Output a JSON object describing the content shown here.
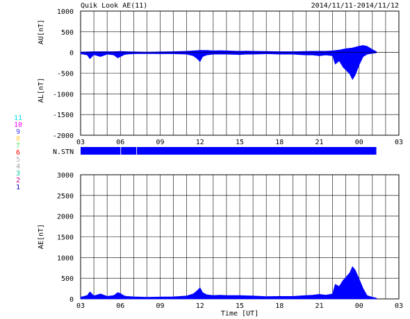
{
  "header": {
    "title": "Quik Look AE(11)",
    "date_range": "2014/11/11-2014/11/12"
  },
  "colors": {
    "series": "#0000ff",
    "grid": "#000000",
    "zero_line": "#000000"
  },
  "station_legend": [
    {
      "number": "11",
      "color": "#00e0e0"
    },
    {
      "number": "10",
      "color": "#ff00ff"
    },
    {
      "number": "9",
      "color": "#4040ff"
    },
    {
      "number": "8",
      "color": "#ffd040"
    },
    {
      "number": "7",
      "color": "#60e060"
    },
    {
      "number": "6",
      "color": "#ff0000"
    },
    {
      "number": "5",
      "color": "#b0b0b0"
    },
    {
      "number": "4",
      "color": "#a0a0a0"
    },
    {
      "number": "3",
      "color": "#00c0a0"
    },
    {
      "number": "2",
      "color": "#d00090"
    },
    {
      "number": "1",
      "color": "#0000c0"
    }
  ],
  "n_stn": {
    "label": "N.STN",
    "segments_hours": [
      [
        3,
        6.0
      ],
      [
        6.05,
        7.2
      ],
      [
        7.25,
        25.3
      ]
    ]
  },
  "chart_data": [
    {
      "type": "area",
      "name": "AU/AL",
      "ylabel_upper": "AU[nT]",
      "ylabel_lower": "AL[nT]",
      "ylim": [
        -2000,
        1000
      ],
      "yticks": [
        1000,
        500,
        0,
        -500,
        -1000,
        -1500,
        -2000
      ],
      "xlim_hours": [
        3,
        27
      ],
      "xtick_labels": [
        "03",
        "06",
        "09",
        "12",
        "15",
        "18",
        "21",
        "00",
        "03"
      ],
      "grid": true,
      "au": {
        "x_hours": [
          3.0,
          3.5,
          4.0,
          4.5,
          5.0,
          5.5,
          6.0,
          6.5,
          7.0,
          8.0,
          9.0,
          10.0,
          11.0,
          11.5,
          12.0,
          12.5,
          13.0,
          13.5,
          14.0,
          15.0,
          15.5,
          16.0,
          17.0,
          18.0,
          19.0,
          20.0,
          20.5,
          21.0,
          21.5,
          22.0,
          22.5,
          23.0,
          23.5,
          24.0,
          24.3,
          24.6,
          25.0,
          25.3
        ],
        "values": [
          10,
          15,
          20,
          20,
          20,
          20,
          25,
          20,
          15,
          10,
          15,
          20,
          30,
          40,
          50,
          50,
          40,
          45,
          40,
          30,
          35,
          30,
          25,
          20,
          20,
          25,
          30,
          30,
          30,
          40,
          60,
          90,
          110,
          150,
          170,
          150,
          70,
          20
        ]
      },
      "al": {
        "x_hours": [
          3.0,
          3.5,
          3.7,
          4.0,
          4.5,
          5.0,
          5.5,
          5.8,
          6.0,
          6.3,
          6.5,
          7.0,
          8.0,
          9.0,
          10.0,
          11.0,
          11.5,
          11.8,
          12.0,
          12.2,
          12.5,
          13.0,
          13.5,
          14.0,
          15.0,
          15.5,
          16.0,
          17.0,
          18.0,
          19.0,
          19.5,
          20.0,
          20.5,
          21.0,
          21.5,
          22.0,
          22.2,
          22.5,
          22.8,
          23.0,
          23.3,
          23.5,
          23.7,
          24.0,
          24.3,
          24.6,
          25.0,
          25.3
        ],
        "values": [
          -30,
          -60,
          -150,
          -50,
          -100,
          -40,
          -60,
          -130,
          -100,
          -50,
          -40,
          -30,
          -25,
          -30,
          -30,
          -40,
          -80,
          -150,
          -220,
          -100,
          -60,
          -40,
          -40,
          -40,
          -50,
          -40,
          -40,
          -30,
          -40,
          -40,
          -50,
          -60,
          -60,
          -80,
          -60,
          -80,
          -280,
          -200,
          -360,
          -420,
          -520,
          -650,
          -550,
          -300,
          -100,
          -40,
          -20,
          -10
        ]
      }
    },
    {
      "type": "area",
      "name": "AE",
      "ylabel": "AE[nT]",
      "xlabel": "Time [UT]",
      "ylim": [
        0,
        3000
      ],
      "yticks": [
        3000,
        2500,
        2000,
        1500,
        1000,
        500,
        0
      ],
      "xlim_hours": [
        3,
        27
      ],
      "xtick_labels": [
        "03",
        "06",
        "09",
        "12",
        "15",
        "18",
        "21",
        "00",
        "03"
      ],
      "grid": true,
      "x_hours": [
        3.0,
        3.5,
        3.7,
        4.0,
        4.5,
        5.0,
        5.5,
        5.8,
        6.0,
        6.3,
        6.5,
        7.0,
        8.0,
        9.0,
        10.0,
        11.0,
        11.5,
        11.8,
        12.0,
        12.2,
        12.5,
        13.0,
        13.5,
        14.0,
        15.0,
        15.5,
        16.0,
        17.0,
        18.0,
        19.0,
        19.5,
        20.0,
        20.5,
        21.0,
        21.5,
        22.0,
        22.2,
        22.5,
        22.8,
        23.0,
        23.3,
        23.5,
        23.7,
        24.0,
        24.3,
        24.6,
        25.0,
        25.3
      ],
      "values": [
        40,
        80,
        170,
        70,
        120,
        60,
        80,
        150,
        130,
        70,
        60,
        50,
        40,
        45,
        50,
        70,
        120,
        200,
        270,
        150,
        100,
        80,
        90,
        80,
        80,
        75,
        70,
        55,
        60,
        60,
        70,
        80,
        90,
        110,
        90,
        120,
        350,
        300,
        450,
        520,
        630,
        780,
        700,
        480,
        250,
        80,
        40,
        20
      ]
    }
  ]
}
